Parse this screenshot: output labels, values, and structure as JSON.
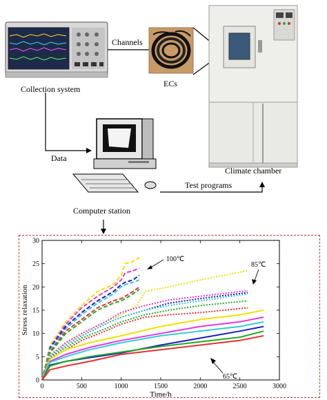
{
  "labels": {
    "collection_system": "Collection system",
    "channels": "Channels",
    "ecs": "ECs",
    "climate_chamber": "Climate chamber",
    "data": "Data",
    "test_programs": "Test programs",
    "computer_station": "Computer station"
  },
  "chart_data": {
    "type": "line",
    "xlabel": "Time/h",
    "ylabel": "Stress relaxation",
    "xlim": [
      0,
      3000
    ],
    "ylim": [
      0,
      30
    ],
    "x_ticks": [
      "0",
      "500",
      "1000",
      "1500",
      "2000",
      "2500",
      "3000"
    ],
    "y_ticks": [
      "0",
      "5",
      "10",
      "15",
      "20",
      "25",
      "30"
    ],
    "annotations": [
      "100℃",
      "85℃",
      "65℃"
    ],
    "series_groups": [
      {
        "group": "100℃",
        "style": "dashed",
        "series": [
          {
            "color": "#f0e000",
            "x": [
              0,
              100,
              300,
              500,
              700,
              900,
              1000,
              1050,
              1150,
              1230
            ],
            "y": [
              0,
              7.5,
              12.5,
              16,
              19,
              20.5,
              22.5,
              25,
              25.5,
              26.3
            ]
          },
          {
            "color": "#e633e6",
            "x": [
              0,
              100,
              300,
              500,
              700,
              900,
              1000,
              1050,
              1150,
              1230
            ],
            "y": [
              0,
              7,
              12,
              15.5,
              18,
              20,
              21.5,
              23,
              23.5,
              24
            ]
          },
          {
            "color": "#1a1acc",
            "x": [
              0,
              100,
              300,
              500,
              700,
              900,
              1000,
              1050,
              1150,
              1230
            ],
            "y": [
              0,
              6.8,
              11.5,
              14.5,
              17,
              19,
              20.5,
              21,
              21.5,
              22.5
            ]
          },
          {
            "color": "#33cccc",
            "x": [
              0,
              100,
              300,
              500,
              700,
              900,
              1000,
              1050,
              1150,
              1230
            ],
            "y": [
              0,
              6.5,
              11,
              14,
              16.5,
              18.5,
              20,
              20.5,
              21,
              21.5
            ]
          },
          {
            "color": "#e62e2e",
            "x": [
              0,
              100,
              300,
              500,
              700,
              900,
              1000,
              1050,
              1150,
              1230
            ],
            "y": [
              0,
              6,
              10.5,
              13,
              15.5,
              17,
              17.5,
              18,
              19,
              20
            ]
          },
          {
            "color": "#22aa22",
            "x": [
              0,
              100,
              300,
              500,
              700,
              900,
              1000,
              1050,
              1150,
              1230
            ],
            "y": [
              0,
              5.8,
              10,
              12.5,
              15,
              16.5,
              17,
              17.5,
              18.5,
              19.5
            ]
          }
        ]
      },
      {
        "group": "85℃",
        "style": "dotted",
        "series": [
          {
            "color": "#f0e000",
            "x": [
              0,
              100,
              300,
              500,
              800,
              1000,
              1200,
              1300,
              1600,
              2000,
              2600
            ],
            "y": [
              0,
              5.5,
              8,
              10,
              12.5,
              14,
              16,
              19,
              20,
              21.5,
              23.5
            ]
          },
          {
            "color": "#e633e6",
            "x": [
              0,
              100,
              300,
              500,
              800,
              1000,
              1200,
              1300,
              1600,
              2000,
              2600
            ],
            "y": [
              0,
              5.2,
              8,
              10,
              12.5,
              14.5,
              15.5,
              16,
              17.2,
              18,
              19.2
            ]
          },
          {
            "color": "#1a1acc",
            "x": [
              0,
              100,
              300,
              500,
              800,
              1000,
              1200,
              1300,
              1600,
              2000,
              2600
            ],
            "y": [
              0,
              5,
              7.5,
              9.5,
              12,
              13.5,
              14.5,
              15,
              16.5,
              17.5,
              18.8
            ]
          },
          {
            "color": "#33cccc",
            "x": [
              0,
              100,
              300,
              500,
              800,
              1000,
              1200,
              1300,
              1600,
              2000,
              2600
            ],
            "y": [
              0,
              5,
              7.5,
              9.5,
              12,
              13.5,
              14.5,
              15,
              16,
              17,
              18.5
            ]
          },
          {
            "color": "#22aa22",
            "x": [
              0,
              100,
              300,
              500,
              800,
              1000,
              1200,
              1300,
              1600,
              2000,
              2600
            ],
            "y": [
              0,
              4.8,
              7,
              9,
              11,
              12.5,
              13.5,
              14,
              15,
              16,
              17
            ]
          },
          {
            "color": "#e62e2e",
            "x": [
              0,
              100,
              300,
              500,
              800,
              1000,
              1200,
              1300,
              1600,
              2000,
              2600
            ],
            "y": [
              0,
              4.5,
              6.5,
              8.5,
              10.5,
              12,
              13,
              13.5,
              14,
              14.5,
              15.5
            ]
          }
        ]
      },
      {
        "group": "65℃",
        "style": "solid",
        "series": [
          {
            "color": "#f0e000",
            "x": [
              0,
              100,
              300,
              600,
              1000,
              1500,
              2000,
              2500,
              2800
            ],
            "y": [
              0,
              4.5,
              6.5,
              8,
              9.5,
              11.5,
              13,
              14,
              15
            ]
          },
          {
            "color": "#e633e6",
            "x": [
              0,
              100,
              300,
              600,
              1000,
              1500,
              2000,
              2500,
              2800
            ],
            "y": [
              0,
              4,
              5.5,
              7,
              8.5,
              10,
              11.5,
              12.5,
              13.5
            ]
          },
          {
            "color": "#33cccc",
            "x": [
              0,
              100,
              300,
              600,
              1000,
              1500,
              2000,
              2500,
              2800
            ],
            "y": [
              0,
              3.8,
              5,
              6.5,
              8,
              9.5,
              10.5,
              11.5,
              12.5
            ]
          },
          {
            "color": "#1a1acc",
            "x": [
              0,
              100,
              300,
              600,
              1000,
              1500,
              2000,
              2500,
              2800
            ],
            "y": [
              0,
              3.2,
              4,
              4.8,
              5.8,
              7.5,
              9,
              10.5,
              11.5
            ]
          },
          {
            "color": "#22aa22",
            "x": [
              0,
              100,
              300,
              600,
              1000,
              1500,
              2000,
              2500,
              2800
            ],
            "y": [
              0,
              3,
              4,
              5,
              6,
              7.2,
              8.2,
              9.2,
              10.5
            ]
          },
          {
            "color": "#e62e2e",
            "x": [
              0,
              100,
              300,
              600,
              1000,
              1500,
              2000,
              2500,
              2800
            ],
            "y": [
              0,
              2.2,
              3,
              4,
              5.5,
              6.5,
              7.5,
              8.5,
              9.5
            ]
          }
        ]
      }
    ]
  }
}
